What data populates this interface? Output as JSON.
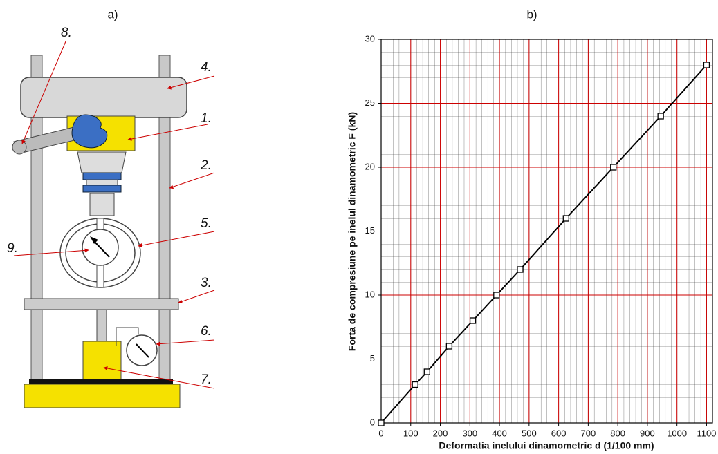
{
  "figure_a": {
    "label": "a)",
    "callouts": [
      "1.",
      "2.",
      "3.",
      "4.",
      "5.",
      "6.",
      "7.",
      "8.",
      "9."
    ]
  },
  "chart_data": {
    "type": "line",
    "panel_label": "b)",
    "x_label": "Deformatia inelului dinamometric  d (1/100 mm)",
    "y_label": "Forta de compresiune  pe  inelul dinamometric  F  (kN)",
    "x": [
      0,
      115,
      155,
      230,
      310,
      390,
      470,
      625,
      785,
      945,
      1100
    ],
    "series": [
      {
        "color": "#000000",
        "values": [
          0,
          3,
          4,
          6,
          8,
          10,
          12,
          16,
          20,
          24,
          28
        ]
      }
    ],
    "xlim": [
      0,
      1120
    ],
    "ylim": [
      0,
      30
    ],
    "xticks": [
      0,
      100,
      200,
      300,
      400,
      500,
      600,
      700,
      800,
      900,
      1000,
      1100
    ],
    "yticks": [
      0,
      5,
      10,
      15,
      20,
      25,
      30
    ],
    "grid": true,
    "grid_color": "#cc0000"
  }
}
